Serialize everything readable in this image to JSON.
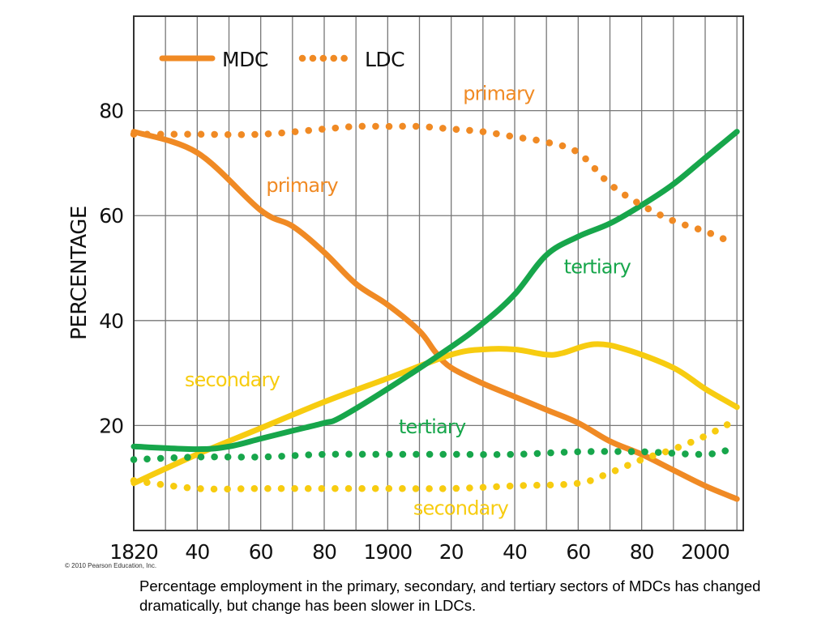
{
  "chart_data": {
    "type": "line",
    "title": "",
    "xlabel": "",
    "ylabel": "PERCENTAGE",
    "xlim": [
      1820,
      2012
    ],
    "ylim": [
      0,
      98
    ],
    "grid": true,
    "legend_position": "top-left",
    "x_ticks": [
      1820,
      1840,
      1860,
      1880,
      1900,
      1920,
      1940,
      1960,
      1980,
      2000
    ],
    "x_tick_labels": [
      "1820",
      "40",
      "60",
      "80",
      "1900",
      "20",
      "40",
      "60",
      "80",
      "2000"
    ],
    "y_ticks": [
      20,
      40,
      60,
      80
    ],
    "y_tick_labels": [
      "20",
      "40",
      "60",
      "80"
    ],
    "legend": [
      {
        "label": "MDC",
        "style": "solid",
        "color": "#f08a24"
      },
      {
        "label": "LDC",
        "style": "dotted",
        "color": "#f08a24"
      }
    ],
    "series": [
      {
        "group": "MDC",
        "sector": "primary",
        "style": "solid",
        "color": "#f08a24",
        "x": [
          1820,
          1840,
          1860,
          1870,
          1880,
          1890,
          1900,
          1910,
          1915,
          1920,
          1930,
          1940,
          1950,
          1960,
          1970,
          1980,
          1990,
          2000,
          2010
        ],
        "y": [
          76,
          72,
          61,
          58,
          53,
          47,
          43,
          38,
          34,
          31,
          28,
          25.5,
          23,
          20.5,
          17,
          14.5,
          11.5,
          8.5,
          6
        ]
      },
      {
        "group": "MDC",
        "sector": "secondary",
        "style": "solid",
        "color": "#f7cc10",
        "x": [
          1820,
          1840,
          1860,
          1880,
          1900,
          1920,
          1930,
          1940,
          1950,
          1955,
          1965,
          1975,
          1990,
          2000,
          2010
        ],
        "y": [
          9,
          14.5,
          19.5,
          24.5,
          29,
          33.5,
          34.5,
          34.5,
          33.5,
          33.8,
          35.5,
          34.5,
          31,
          27,
          23.5
        ]
      },
      {
        "group": "MDC",
        "sector": "tertiary",
        "style": "solid",
        "color": "#17a64b",
        "x": [
          1820,
          1840,
          1850,
          1860,
          1870,
          1880,
          1885,
          1900,
          1920,
          1930,
          1940,
          1950,
          1960,
          1970,
          1980,
          1990,
          2000,
          2010
        ],
        "y": [
          16,
          15.5,
          16,
          17.5,
          19,
          20.5,
          21.5,
          27,
          35,
          39.5,
          45,
          52.5,
          56,
          58.5,
          62,
          66,
          71,
          76
        ]
      },
      {
        "group": "LDC",
        "sector": "primary",
        "style": "dotted",
        "color": "#f08a24",
        "x": [
          1820,
          1840,
          1860,
          1880,
          1890,
          1900,
          1910,
          1920,
          1930,
          1940,
          1950,
          1960,
          1970,
          1980,
          1990,
          2000,
          2008
        ],
        "y": [
          75.5,
          75.5,
          75.5,
          76.5,
          77,
          77,
          77,
          76.5,
          76,
          75,
          74,
          72,
          66,
          62,
          59,
          57,
          55
        ]
      },
      {
        "group": "LDC",
        "sector": "secondary",
        "style": "dotted",
        "color": "#f7cc10",
        "x": [
          1820,
          1840,
          1860,
          1880,
          1900,
          1920,
          1940,
          1960,
          1970,
          1980,
          1990,
          2000,
          2008
        ],
        "y": [
          9.5,
          8,
          8,
          8,
          8,
          8,
          8.5,
          9,
          11,
          13.5,
          15.5,
          18,
          20.5
        ]
      },
      {
        "group": "LDC",
        "sector": "tertiary",
        "style": "dotted",
        "color": "#17a64b",
        "x": [
          1820,
          1840,
          1860,
          1880,
          1900,
          1920,
          1940,
          1960,
          1980,
          2000,
          2008
        ],
        "y": [
          13.5,
          14,
          14,
          14.5,
          14.5,
          14.5,
          14.5,
          15,
          15,
          14.5,
          15.5
        ]
      }
    ],
    "annotations": [
      {
        "text": "primary",
        "x": 1935,
        "y": 82,
        "color": "#f08a24"
      },
      {
        "text": "primary",
        "x": 1873,
        "y": 64.5,
        "color": "#f08a24"
      },
      {
        "text": "tertiary",
        "x": 1966,
        "y": 49,
        "color": "#17a64b"
      },
      {
        "text": "secondary",
        "x": 1851,
        "y": 27.5,
        "color": "#f7cc10"
      },
      {
        "text": "tertiary",
        "x": 1914,
        "y": 18.5,
        "color": "#17a64b"
      },
      {
        "text": "secondary",
        "x": 1923,
        "y": 3,
        "color": "#f7cc10"
      }
    ]
  },
  "footer": {
    "copyright": "© 2010 Pearson Education, Inc.",
    "caption": "Percentage employment in the primary, secondary, and tertiary sectors of MDCs has changed dramatically, but change has been slower in LDCs."
  }
}
